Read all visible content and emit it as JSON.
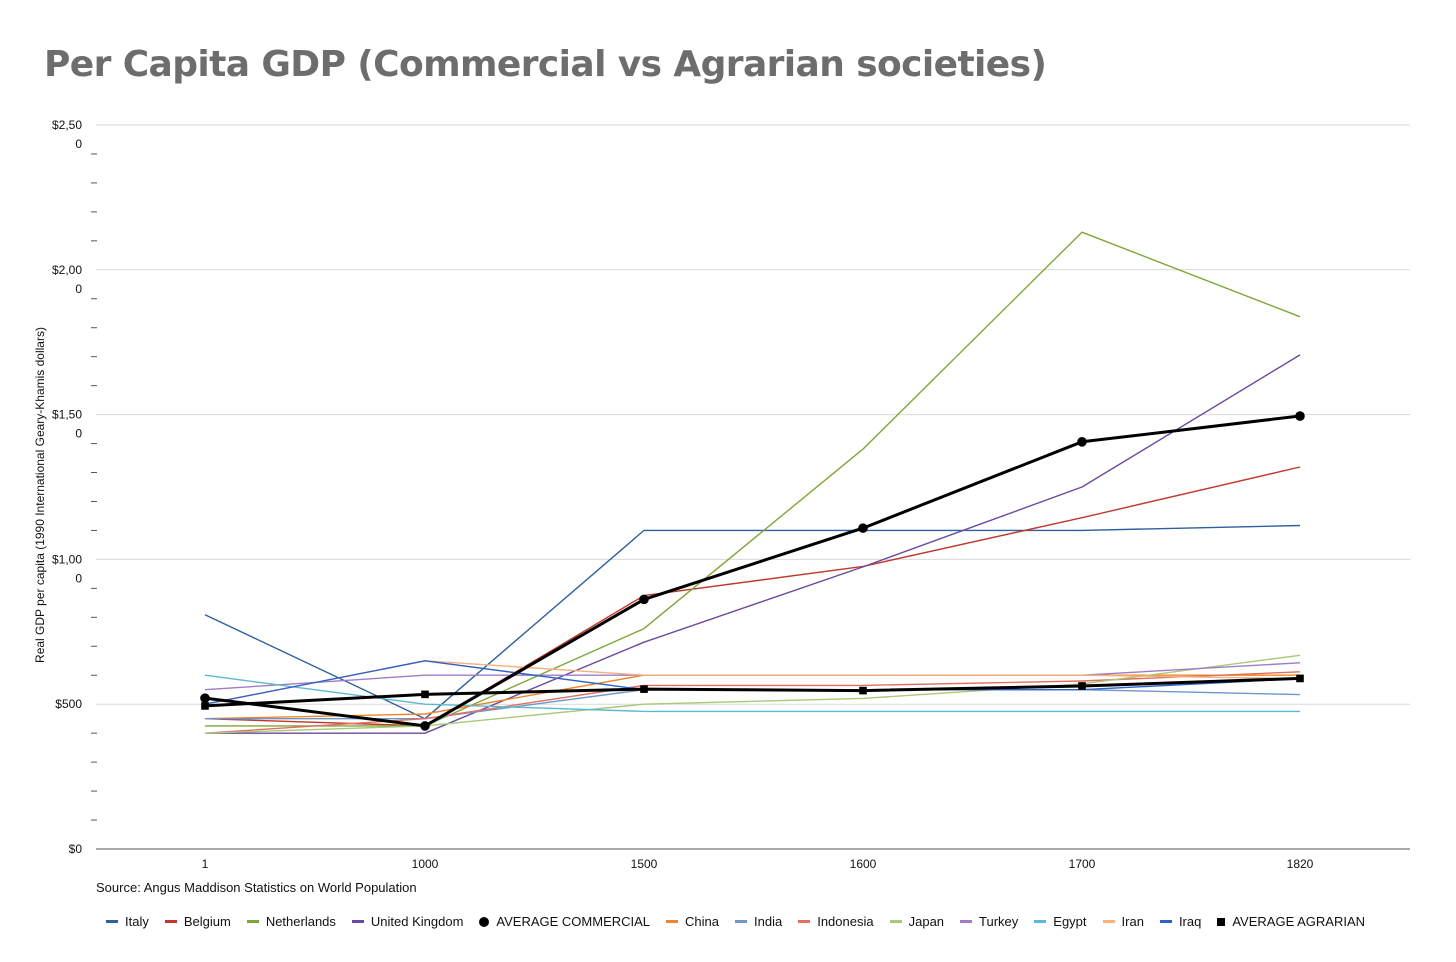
{
  "chart_data": {
    "type": "line",
    "title": "Per Capita GDP (Commercial vs Agrarian societies)",
    "source": "Source: Angus Maddison Statistics on World Population",
    "xlabel": "",
    "ylabel": "Real GDP per capita (1990 International Geary-Khamis dollars)",
    "categories": [
      "1",
      "1000",
      "1500",
      "1600",
      "1700",
      "1820"
    ],
    "y_ticks": [
      {
        "value": 0,
        "line1": "$0",
        "line2": ""
      },
      {
        "value": 500,
        "line1": "$500",
        "line2": ""
      },
      {
        "value": 1000,
        "line1": "$1,00",
        "line2": "0"
      },
      {
        "value": 1500,
        "line1": "$1,50",
        "line2": "0"
      },
      {
        "value": 2000,
        "line1": "$2,00",
        "line2": "0"
      },
      {
        "value": 2500,
        "line1": "$2,50",
        "line2": "0"
      }
    ],
    "ylim": [
      0,
      2500
    ],
    "grid": true,
    "legend_position": "bottom",
    "series": [
      {
        "name": "Italy",
        "color": "#2e5f9e",
        "marker": "line",
        "values": [
          809,
          450,
          1100,
          1100,
          1100,
          1117
        ]
      },
      {
        "name": "Belgium",
        "color": "#c0392b",
        "marker": "line",
        "values": [
          450,
          425,
          875,
          976,
          1144,
          1319
        ]
      },
      {
        "name": "Netherlands",
        "color": "#7fa63a",
        "marker": "line",
        "values": [
          425,
          425,
          761,
          1381,
          2130,
          1838
        ]
      },
      {
        "name": "United Kingdom",
        "color": "#6a4a9c",
        "marker": "line",
        "values": [
          400,
          400,
          714,
          974,
          1250,
          1706
        ]
      },
      {
        "name": "AVERAGE COMMERCIAL",
        "color": "#000000",
        "marker": "dot",
        "values": [
          521,
          425,
          862,
          1108,
          1406,
          1495
        ]
      },
      {
        "name": "China",
        "color": "#f0862a",
        "marker": "line",
        "values": [
          450,
          466,
          600,
          600,
          600,
          600
        ]
      },
      {
        "name": "India",
        "color": "#6d98c9",
        "marker": "line",
        "values": [
          450,
          450,
          550,
          550,
          550,
          533
        ]
      },
      {
        "name": "Indonesia",
        "color": "#e46e5f",
        "marker": "line",
        "values": [
          400,
          450,
          565,
          565,
          580,
          612
        ]
      },
      {
        "name": "Japan",
        "color": "#a9c878",
        "marker": "line",
        "values": [
          400,
          425,
          500,
          520,
          570,
          669
        ]
      },
      {
        "name": "Turkey",
        "color": "#a07cc8",
        "marker": "line",
        "values": [
          550,
          600,
          600,
          600,
          600,
          643
        ]
      },
      {
        "name": "Egypt",
        "color": "#5bbad0",
        "marker": "line",
        "values": [
          600,
          500,
          475,
          475,
          475,
          475
        ]
      },
      {
        "name": "Iran",
        "color": "#f5b27a",
        "marker": "line",
        "values": [
          500,
          650,
          600,
          600,
          600,
          588
        ]
      },
      {
        "name": "Iraq",
        "color": "#2f62c6",
        "marker": "line",
        "values": [
          500,
          650,
          550,
          550,
          550,
          588
        ]
      },
      {
        "name": "AVERAGE AGRARIAN",
        "color": "#000000",
        "marker": "square",
        "values": [
          494,
          534,
          552,
          547,
          563,
          589
        ]
      }
    ]
  }
}
